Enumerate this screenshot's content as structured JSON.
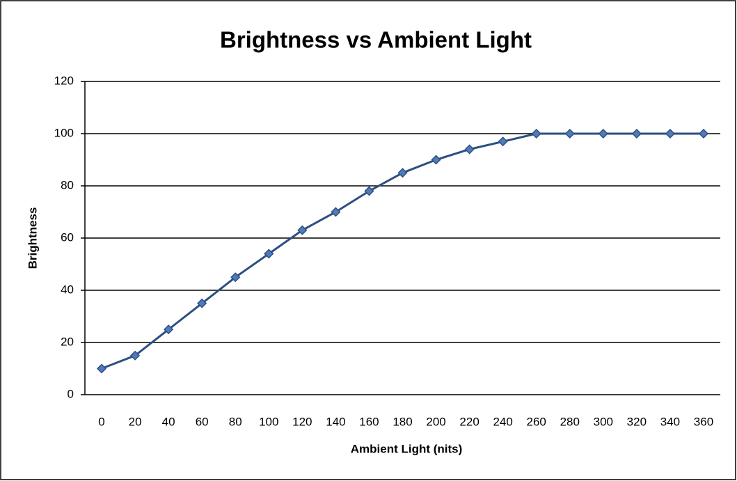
{
  "chart_data": {
    "type": "line",
    "title": "Brightness vs Ambient Light",
    "x_label": "Ambient Light (nits)",
    "y_label": "Brightness",
    "categories": [
      "0",
      "20",
      "40",
      "60",
      "80",
      "100",
      "120",
      "140",
      "160",
      "180",
      "200",
      "220",
      "240",
      "260",
      "280",
      "300",
      "320",
      "340",
      "360"
    ],
    "series": [
      {
        "name": "Brightness",
        "color": "#2d4f80",
        "values": [
          10,
          15,
          25,
          35,
          45,
          54,
          63,
          70,
          78,
          85,
          90,
          94,
          97,
          100,
          100,
          100,
          100,
          100,
          100
        ]
      }
    ],
    "ylim": [
      0,
      120
    ],
    "yticks": [
      0,
      20,
      40,
      60,
      80,
      100,
      120
    ],
    "grid": true
  }
}
